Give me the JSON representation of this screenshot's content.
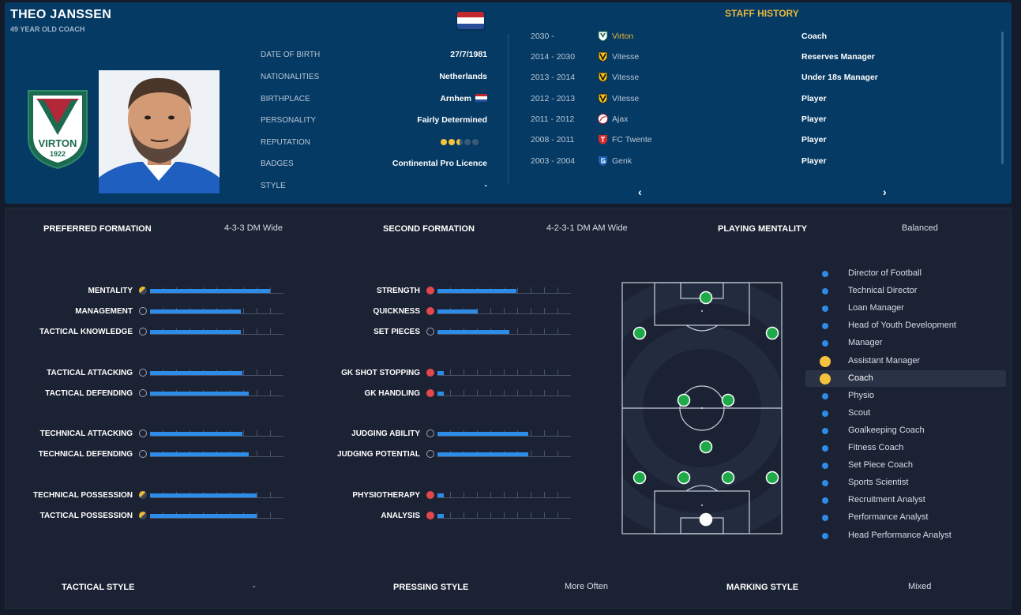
{
  "colors": {
    "header_bg": "#053a64",
    "accent_gold": "#e8b83a",
    "bar_blue": "#2d8ce8",
    "player_green": "#1faa4a",
    "role_highlight": "#f5c23c"
  },
  "profile": {
    "name": "THEO JANSSEN",
    "subtitle": "49 YEAR OLD COACH",
    "club_crest": {
      "icon": "virton-crest-icon",
      "name": "VIRTON",
      "year": "1922"
    },
    "photo_icon": "coach-photo",
    "flag_icon": "netherlands-flag-icon"
  },
  "info": [
    {
      "label": "DATE OF BIRTH",
      "value": "27/7/1981"
    },
    {
      "label": "NATIONALITIES",
      "value": "Netherlands"
    },
    {
      "label": "BIRTHPLACE",
      "value": "Arnhem"
    },
    {
      "label": "PERSONALITY",
      "value": "Fairly Determined"
    },
    {
      "label": "REPUTATION",
      "value": "",
      "stars": 2.5,
      "stars_max": 5
    },
    {
      "label": "BADGES",
      "value": "Continental Pro Licence"
    },
    {
      "label": "STYLE",
      "value": "-"
    }
  ],
  "history": {
    "title": "STAFF HISTORY",
    "rows": [
      {
        "years": "2030 -",
        "club": "Virton",
        "role": "Coach",
        "icon": "virton-icon",
        "highlight": true
      },
      {
        "years": "2014 - 2030",
        "club": "Vitesse",
        "role": "Reserves Manager",
        "icon": "vitesse-icon"
      },
      {
        "years": "2013 - 2014",
        "club": "Vitesse",
        "role": "Under 18s Manager",
        "icon": "vitesse-icon"
      },
      {
        "years": "2012 - 2013",
        "club": "Vitesse",
        "role": "Player",
        "icon": "vitesse-icon"
      },
      {
        "years": "2011 - 2012",
        "club": "Ajax",
        "role": "Player",
        "icon": "ajax-icon"
      },
      {
        "years": "2008 - 2011",
        "club": "FC Twente",
        "role": "Player",
        "icon": "fc-twente-icon"
      },
      {
        "years": "2003 - 2004",
        "club": "Genk",
        "role": "Player",
        "icon": "genk-icon"
      }
    ],
    "prev": "‹",
    "next": "›"
  },
  "summary": {
    "preferred_formation_label": "PREFERRED FORMATION",
    "preferred_formation": "4-3-3 DM Wide",
    "second_formation_label": "SECOND FORMATION",
    "second_formation": "4-2-3-1 DM AM Wide",
    "mentality_label": "PLAYING MENTALITY",
    "mentality": "Balanced",
    "tactical_style_label": "TACTICAL STYLE",
    "tactical_style": "-",
    "pressing_style_label": "PRESSING STYLE",
    "pressing_style": "More Often",
    "marking_style_label": "MARKING STYLE",
    "marking_style": "Mixed"
  },
  "attributes_left": [
    {
      "label": "MENTALITY",
      "value": 0.9,
      "icon": "half-gold-icon",
      "group": 0
    },
    {
      "label": "MANAGEMENT",
      "value": 0.68,
      "icon": "neutral-icon",
      "group": 0
    },
    {
      "label": "TACTICAL KNOWLEDGE",
      "value": 0.68,
      "icon": "neutral-icon",
      "group": 0
    },
    {
      "label": "TACTICAL ATTACKING",
      "value": 0.69,
      "icon": "neutral-icon",
      "group": 1
    },
    {
      "label": "TACTICAL DEFENDING",
      "value": 0.74,
      "icon": "neutral-icon",
      "group": 1
    },
    {
      "label": "TECHNICAL ATTACKING",
      "value": 0.69,
      "icon": "neutral-icon",
      "group": 2
    },
    {
      "label": "TECHNICAL DEFENDING",
      "value": 0.74,
      "icon": "neutral-icon",
      "group": 2
    },
    {
      "label": "TECHNICAL POSSESSION",
      "value": 0.8,
      "icon": "half-gold-icon",
      "group": 3
    },
    {
      "label": "TACTICAL POSSESSION",
      "value": 0.8,
      "icon": "half-gold-icon",
      "group": 3
    }
  ],
  "attributes_right": [
    {
      "label": "STRENGTH",
      "value": 0.59,
      "icon": "red-icon",
      "group": 0
    },
    {
      "label": "QUICKNESS",
      "value": 0.3,
      "icon": "red-icon",
      "group": 0
    },
    {
      "label": "SET PIECES",
      "value": 0.54,
      "icon": "neutral-icon",
      "group": 0
    },
    {
      "label": "GK SHOT STOPPING",
      "value": 0.05,
      "icon": "red-icon",
      "group": 1
    },
    {
      "label": "GK HANDLING",
      "value": 0.05,
      "icon": "red-icon",
      "group": 1
    },
    {
      "label": "JUDGING ABILITY",
      "value": 0.68,
      "icon": "neutral-icon",
      "group": 2
    },
    {
      "label": "JUDGING POTENTIAL",
      "value": 0.68,
      "icon": "neutral-icon",
      "group": 2
    },
    {
      "label": "PHYSIOTHERAPY",
      "value": 0.05,
      "icon": "red-icon",
      "group": 3
    },
    {
      "label": "ANALYSIS",
      "value": 0.05,
      "icon": "red-icon",
      "group": 3
    }
  ],
  "roles": [
    {
      "name": "Director of Football"
    },
    {
      "name": "Technical Director"
    },
    {
      "name": "Loan Manager"
    },
    {
      "name": "Head of Youth Development"
    },
    {
      "name": "Manager"
    },
    {
      "name": "Assistant Manager",
      "highlight": true
    },
    {
      "name": "Coach",
      "highlight": true,
      "active": true
    },
    {
      "name": "Physio"
    },
    {
      "name": "Scout"
    },
    {
      "name": "Goalkeeping Coach"
    },
    {
      "name": "Fitness Coach"
    },
    {
      "name": "Set Piece Coach"
    },
    {
      "name": "Sports Scientist"
    },
    {
      "name": "Recruitment Analyst"
    },
    {
      "name": "Performance Analyst"
    },
    {
      "name": "Head Performance Analyst"
    }
  ]
}
